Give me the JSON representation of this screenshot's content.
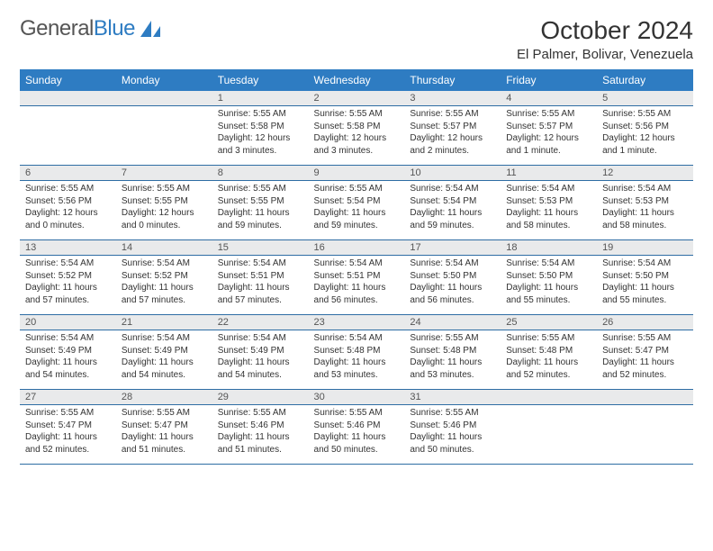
{
  "logo": {
    "part1": "General",
    "part2": "Blue"
  },
  "header": {
    "title": "October 2024",
    "location": "El Palmer, Bolivar, Venezuela"
  },
  "style": {
    "header_bg": "#2e7cc2",
    "header_text": "#ffffff",
    "daynum_bg": "#e9eaeb",
    "border_color": "#2e6da4",
    "page_bg": "#ffffff",
    "title_fontsize": 28,
    "location_fontsize": 15,
    "th_fontsize": 12,
    "cell_fontsize": 10
  },
  "weekdays": [
    "Sunday",
    "Monday",
    "Tuesday",
    "Wednesday",
    "Thursday",
    "Friday",
    "Saturday"
  ],
  "weeks": [
    [
      null,
      null,
      {
        "day": "1",
        "sunrise": "Sunrise: 5:55 AM",
        "sunset": "Sunset: 5:58 PM",
        "daylight": "Daylight: 12 hours and 3 minutes."
      },
      {
        "day": "2",
        "sunrise": "Sunrise: 5:55 AM",
        "sunset": "Sunset: 5:58 PM",
        "daylight": "Daylight: 12 hours and 3 minutes."
      },
      {
        "day": "3",
        "sunrise": "Sunrise: 5:55 AM",
        "sunset": "Sunset: 5:57 PM",
        "daylight": "Daylight: 12 hours and 2 minutes."
      },
      {
        "day": "4",
        "sunrise": "Sunrise: 5:55 AM",
        "sunset": "Sunset: 5:57 PM",
        "daylight": "Daylight: 12 hours and 1 minute."
      },
      {
        "day": "5",
        "sunrise": "Sunrise: 5:55 AM",
        "sunset": "Sunset: 5:56 PM",
        "daylight": "Daylight: 12 hours and 1 minute."
      }
    ],
    [
      {
        "day": "6",
        "sunrise": "Sunrise: 5:55 AM",
        "sunset": "Sunset: 5:56 PM",
        "daylight": "Daylight: 12 hours and 0 minutes."
      },
      {
        "day": "7",
        "sunrise": "Sunrise: 5:55 AM",
        "sunset": "Sunset: 5:55 PM",
        "daylight": "Daylight: 12 hours and 0 minutes."
      },
      {
        "day": "8",
        "sunrise": "Sunrise: 5:55 AM",
        "sunset": "Sunset: 5:55 PM",
        "daylight": "Daylight: 11 hours and 59 minutes."
      },
      {
        "day": "9",
        "sunrise": "Sunrise: 5:55 AM",
        "sunset": "Sunset: 5:54 PM",
        "daylight": "Daylight: 11 hours and 59 minutes."
      },
      {
        "day": "10",
        "sunrise": "Sunrise: 5:54 AM",
        "sunset": "Sunset: 5:54 PM",
        "daylight": "Daylight: 11 hours and 59 minutes."
      },
      {
        "day": "11",
        "sunrise": "Sunrise: 5:54 AM",
        "sunset": "Sunset: 5:53 PM",
        "daylight": "Daylight: 11 hours and 58 minutes."
      },
      {
        "day": "12",
        "sunrise": "Sunrise: 5:54 AM",
        "sunset": "Sunset: 5:53 PM",
        "daylight": "Daylight: 11 hours and 58 minutes."
      }
    ],
    [
      {
        "day": "13",
        "sunrise": "Sunrise: 5:54 AM",
        "sunset": "Sunset: 5:52 PM",
        "daylight": "Daylight: 11 hours and 57 minutes."
      },
      {
        "day": "14",
        "sunrise": "Sunrise: 5:54 AM",
        "sunset": "Sunset: 5:52 PM",
        "daylight": "Daylight: 11 hours and 57 minutes."
      },
      {
        "day": "15",
        "sunrise": "Sunrise: 5:54 AM",
        "sunset": "Sunset: 5:51 PM",
        "daylight": "Daylight: 11 hours and 57 minutes."
      },
      {
        "day": "16",
        "sunrise": "Sunrise: 5:54 AM",
        "sunset": "Sunset: 5:51 PM",
        "daylight": "Daylight: 11 hours and 56 minutes."
      },
      {
        "day": "17",
        "sunrise": "Sunrise: 5:54 AM",
        "sunset": "Sunset: 5:50 PM",
        "daylight": "Daylight: 11 hours and 56 minutes."
      },
      {
        "day": "18",
        "sunrise": "Sunrise: 5:54 AM",
        "sunset": "Sunset: 5:50 PM",
        "daylight": "Daylight: 11 hours and 55 minutes."
      },
      {
        "day": "19",
        "sunrise": "Sunrise: 5:54 AM",
        "sunset": "Sunset: 5:50 PM",
        "daylight": "Daylight: 11 hours and 55 minutes."
      }
    ],
    [
      {
        "day": "20",
        "sunrise": "Sunrise: 5:54 AM",
        "sunset": "Sunset: 5:49 PM",
        "daylight": "Daylight: 11 hours and 54 minutes."
      },
      {
        "day": "21",
        "sunrise": "Sunrise: 5:54 AM",
        "sunset": "Sunset: 5:49 PM",
        "daylight": "Daylight: 11 hours and 54 minutes."
      },
      {
        "day": "22",
        "sunrise": "Sunrise: 5:54 AM",
        "sunset": "Sunset: 5:49 PM",
        "daylight": "Daylight: 11 hours and 54 minutes."
      },
      {
        "day": "23",
        "sunrise": "Sunrise: 5:54 AM",
        "sunset": "Sunset: 5:48 PM",
        "daylight": "Daylight: 11 hours and 53 minutes."
      },
      {
        "day": "24",
        "sunrise": "Sunrise: 5:55 AM",
        "sunset": "Sunset: 5:48 PM",
        "daylight": "Daylight: 11 hours and 53 minutes."
      },
      {
        "day": "25",
        "sunrise": "Sunrise: 5:55 AM",
        "sunset": "Sunset: 5:48 PM",
        "daylight": "Daylight: 11 hours and 52 minutes."
      },
      {
        "day": "26",
        "sunrise": "Sunrise: 5:55 AM",
        "sunset": "Sunset: 5:47 PM",
        "daylight": "Daylight: 11 hours and 52 minutes."
      }
    ],
    [
      {
        "day": "27",
        "sunrise": "Sunrise: 5:55 AM",
        "sunset": "Sunset: 5:47 PM",
        "daylight": "Daylight: 11 hours and 52 minutes."
      },
      {
        "day": "28",
        "sunrise": "Sunrise: 5:55 AM",
        "sunset": "Sunset: 5:47 PM",
        "daylight": "Daylight: 11 hours and 51 minutes."
      },
      {
        "day": "29",
        "sunrise": "Sunrise: 5:55 AM",
        "sunset": "Sunset: 5:46 PM",
        "daylight": "Daylight: 11 hours and 51 minutes."
      },
      {
        "day": "30",
        "sunrise": "Sunrise: 5:55 AM",
        "sunset": "Sunset: 5:46 PM",
        "daylight": "Daylight: 11 hours and 50 minutes."
      },
      {
        "day": "31",
        "sunrise": "Sunrise: 5:55 AM",
        "sunset": "Sunset: 5:46 PM",
        "daylight": "Daylight: 11 hours and 50 minutes."
      },
      null,
      null
    ]
  ]
}
